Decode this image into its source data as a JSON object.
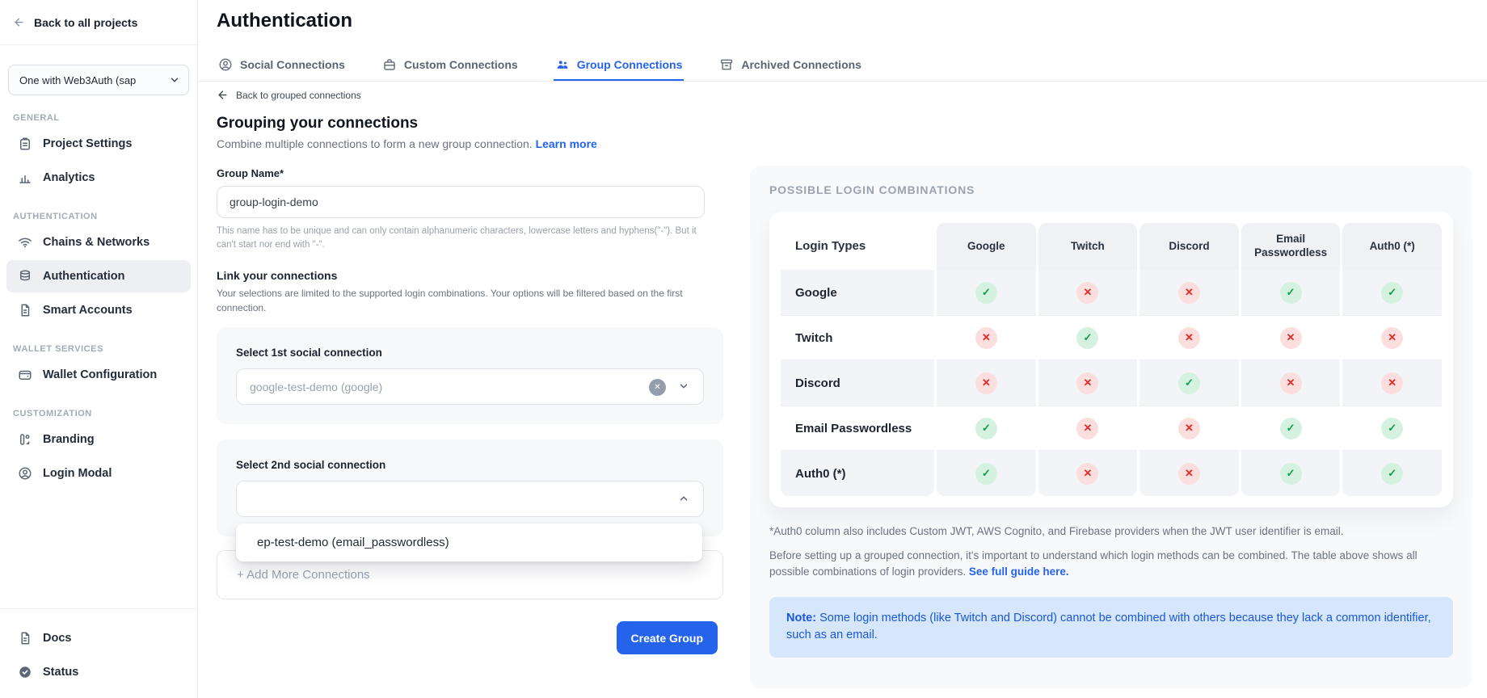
{
  "colors": {
    "accent_blue": "#2563eb",
    "check_green": "#169a4e",
    "check_green_bg": "#d5f1e0",
    "cross_red": "#df2b2b",
    "cross_red_bg": "#fbdede",
    "note_bg": "#d7e7fb",
    "note_text": "#1a56db"
  },
  "sidebar": {
    "back_label": "Back to all projects",
    "project_selector": {
      "value": "One with Web3Auth (sap",
      "icon": "chevron-down-icon"
    },
    "sections": [
      {
        "label": "GENERAL",
        "items": [
          {
            "label": "Project Settings",
            "icon": "clipboard-icon",
            "active": false
          },
          {
            "label": "Analytics",
            "icon": "analytics-icon",
            "active": false
          }
        ]
      },
      {
        "label": "AUTHENTICATION",
        "items": [
          {
            "label": "Chains & Networks",
            "icon": "wifi-icon",
            "active": false
          },
          {
            "label": "Authentication",
            "icon": "database-icon",
            "active": true
          },
          {
            "label": "Smart Accounts",
            "icon": "file-icon",
            "active": false
          }
        ]
      },
      {
        "label": "WALLET SERVICES",
        "items": [
          {
            "label": "Wallet Configuration",
            "icon": "wallet-icon",
            "active": false
          }
        ]
      },
      {
        "label": "CUSTOMIZATION",
        "items": [
          {
            "label": "Branding",
            "icon": "branding-icon",
            "active": false
          },
          {
            "label": "Login Modal",
            "icon": "user-circle-icon",
            "active": false
          }
        ]
      }
    ],
    "footer_items": [
      {
        "label": "Docs",
        "icon": "docs-icon",
        "active": false
      },
      {
        "label": "Status",
        "icon": "status-check-icon",
        "active": false
      }
    ]
  },
  "header": {
    "title": "Authentication",
    "tabs": [
      {
        "label": "Social Connections",
        "icon": "user-circle-icon",
        "active": false
      },
      {
        "label": "Custom Connections",
        "icon": "toolbox-icon",
        "active": false
      },
      {
        "label": "Group Connections",
        "icon": "people-group-icon",
        "active": true
      },
      {
        "label": "Archived Connections",
        "icon": "archive-icon",
        "active": false
      }
    ]
  },
  "main": {
    "back_link": "Back to grouped connections",
    "heading": "Grouping your connections",
    "subheading": "Combine multiple connections to form a new group connection.",
    "learn_more": "Learn more",
    "group_name": {
      "label": "Group Name*",
      "value": "group-login-demo",
      "helper": "This name has to be unique and can only contain alphanumeric characters, lowercase letters and hyphens(\"-\"). But it can't start nor end with \"-\"."
    },
    "link_section": {
      "title": "Link your connections",
      "description": "Your selections are limited to the supported login combinations. Your options will be filtered based on the first connection."
    },
    "select1": {
      "label": "Select 1st social connection",
      "value": "google-test-demo (google)"
    },
    "select2": {
      "label": "Select 2nd social connection",
      "value": ""
    },
    "dropdown_option": "ep-test-demo (email_passwordless)",
    "add_more_label": "+ Add More Connections",
    "create_button": "Create Group"
  },
  "panel": {
    "heading": "POSSIBLE LOGIN COMBINATIONS",
    "table": {
      "corner": "Login Types",
      "columns": [
        "Google",
        "Twitch",
        "Discord",
        "Email Passwordless",
        "Auth0 (*)"
      ],
      "rows": [
        {
          "label": "Google",
          "values": [
            "yes",
            "no",
            "no",
            "yes",
            "yes"
          ]
        },
        {
          "label": "Twitch",
          "values": [
            "no",
            "yes",
            "no",
            "no",
            "no"
          ]
        },
        {
          "label": "Discord",
          "values": [
            "no",
            "no",
            "yes",
            "no",
            "no"
          ]
        },
        {
          "label": "Email Passwordless",
          "values": [
            "yes",
            "no",
            "no",
            "yes",
            "yes"
          ]
        },
        {
          "label": "Auth0 (*)",
          "values": [
            "yes",
            "no",
            "no",
            "yes",
            "yes"
          ]
        }
      ],
      "check_glyph": "✓",
      "cross_glyph": "✕"
    },
    "footnote": "*Auth0 column also includes Custom JWT, AWS Cognito, and Firebase providers when the JWT user identifier is email.",
    "guide_text": "Before setting up a grouped connection, it's important to understand which login methods can be combined. The table above shows all possible combinations of login providers. ",
    "guide_link": "See full guide here.",
    "note_label": "Note:",
    "note_text": " Some login methods (like Twitch and Discord) cannot be combined with others because they lack a common identifier, such as an email."
  }
}
